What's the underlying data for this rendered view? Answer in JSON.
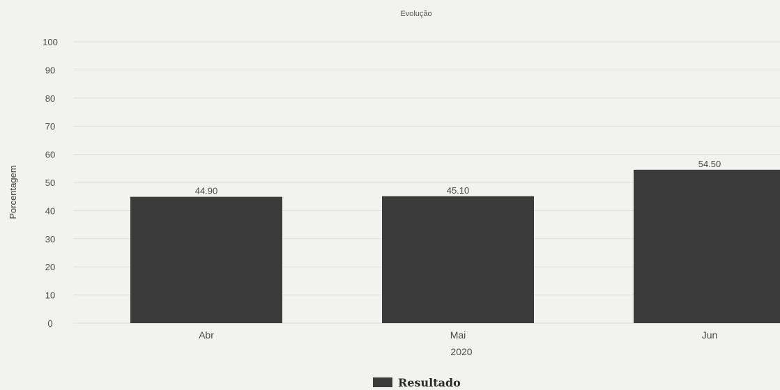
{
  "chart_data": {
    "type": "bar",
    "title": "Evolução",
    "ylabel": "Porcentagem",
    "xlabel": "2020",
    "categories": [
      "Abr",
      "Mai",
      "Jun"
    ],
    "series": [
      {
        "name": "Resultado",
        "values": [
          44.9,
          45.1,
          54.5
        ],
        "labels": [
          "44.90",
          "45.10",
          "54.50"
        ]
      }
    ],
    "ylim": [
      0,
      100
    ],
    "yticks": [
      0,
      10,
      20,
      30,
      40,
      50,
      60,
      70,
      80,
      90,
      100
    ],
    "grid": true,
    "legend_position": "bottom",
    "colors": {
      "bar": "#3b3b3b",
      "text": "#4a4a4a",
      "grid": "#dcdcda"
    }
  }
}
